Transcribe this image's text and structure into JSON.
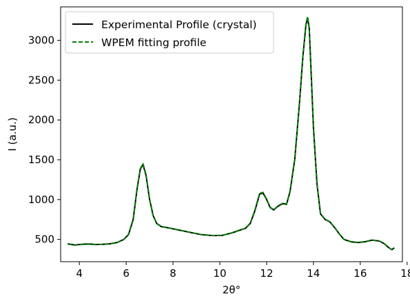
{
  "chart_data": {
    "type": "line",
    "xlabel": "2θ°",
    "ylabel": "I (a.u.)",
    "xlim": [
      3.2,
      17.8
    ],
    "ylim": [
      220,
      3420
    ],
    "xticks": [
      4,
      6,
      8,
      10,
      12,
      14,
      16,
      18
    ],
    "yticks": [
      500,
      1000,
      1500,
      2000,
      2500,
      3000
    ],
    "legend_position": "top-left",
    "colors": {
      "experimental": "#000000",
      "fit": "#008000"
    },
    "series": [
      {
        "name": "Experimental Profile (crystal)",
        "style": "solid",
        "x": [
          3.5,
          3.8,
          4.1,
          4.4,
          4.7,
          5.0,
          5.3,
          5.6,
          5.9,
          6.1,
          6.3,
          6.45,
          6.6,
          6.72,
          6.85,
          7.0,
          7.15,
          7.3,
          7.5,
          7.8,
          8.2,
          8.7,
          9.2,
          9.7,
          10.1,
          10.5,
          10.8,
          11.1,
          11.3,
          11.5,
          11.7,
          11.85,
          12.0,
          12.15,
          12.3,
          12.5,
          12.7,
          12.85,
          13.0,
          13.2,
          13.4,
          13.55,
          13.68,
          13.75,
          13.82,
          13.9,
          14.0,
          14.15,
          14.3,
          14.5,
          14.7,
          14.9,
          15.1,
          15.3,
          15.6,
          15.9,
          16.2,
          16.5,
          16.8,
          17.0,
          17.2,
          17.35,
          17.45
        ],
        "y": [
          445,
          430,
          438,
          443,
          436,
          438,
          445,
          460,
          500,
          560,
          750,
          1100,
          1380,
          1440,
          1300,
          1000,
          800,
          700,
          660,
          645,
          620,
          590,
          560,
          548,
          550,
          580,
          610,
          640,
          700,
          860,
          1070,
          1080,
          1000,
          900,
          870,
          920,
          950,
          940,
          1100,
          1500,
          2200,
          2800,
          3200,
          3280,
          3150,
          2600,
          1900,
          1200,
          820,
          750,
          720,
          650,
          570,
          500,
          470,
          460,
          470,
          490,
          480,
          450,
          400,
          370,
          395
        ]
      },
      {
        "name": "WPEM fitting profile",
        "style": "dashed",
        "x": [
          3.5,
          3.8,
          4.1,
          4.4,
          4.7,
          5.0,
          5.3,
          5.6,
          5.9,
          6.1,
          6.3,
          6.45,
          6.6,
          6.72,
          6.85,
          7.0,
          7.15,
          7.3,
          7.5,
          7.8,
          8.2,
          8.7,
          9.2,
          9.7,
          10.1,
          10.5,
          10.8,
          11.1,
          11.3,
          11.5,
          11.7,
          11.85,
          12.0,
          12.15,
          12.3,
          12.5,
          12.7,
          12.85,
          13.0,
          13.2,
          13.4,
          13.55,
          13.68,
          13.75,
          13.82,
          13.9,
          14.0,
          14.15,
          14.3,
          14.5,
          14.7,
          14.9,
          15.1,
          15.3,
          15.6,
          15.9,
          16.2,
          16.5,
          16.8,
          17.0,
          17.2,
          17.35,
          17.45
        ],
        "y": [
          440,
          428,
          436,
          440,
          434,
          437,
          443,
          458,
          498,
          565,
          760,
          1110,
          1390,
          1450,
          1310,
          1005,
          805,
          702,
          662,
          646,
          621,
          591,
          561,
          549,
          551,
          581,
          612,
          642,
          705,
          870,
          1080,
          1090,
          1005,
          905,
          872,
          925,
          955,
          945,
          1110,
          1510,
          2210,
          2810,
          3210,
          3300,
          3160,
          2610,
          1905,
          1205,
          825,
          752,
          722,
          652,
          572,
          502,
          472,
          462,
          472,
          492,
          482,
          452,
          402,
          372,
          392
        ]
      }
    ]
  }
}
